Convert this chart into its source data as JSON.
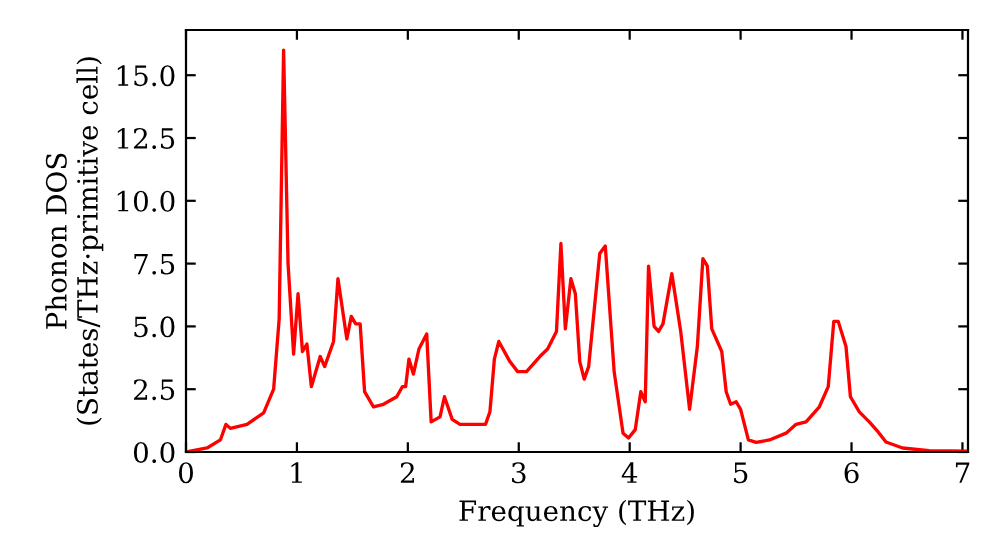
{
  "chart_data": {
    "type": "line",
    "xlabel": "Frequency (THz)",
    "ylabel": "Phonon DOS\n(States/THz·primitive cell)",
    "xlim": [
      0,
      7.05
    ],
    "ylim": [
      0,
      16.8
    ],
    "xticks": [
      0,
      1,
      2,
      3,
      4,
      5,
      6,
      7
    ],
    "yticks": [
      {
        "value": 0,
        "label": "0.0"
      },
      {
        "value": 2.5,
        "label": "2.5"
      },
      {
        "value": 5,
        "label": "5.0"
      },
      {
        "value": 7.5,
        "label": "7.5"
      },
      {
        "value": 10,
        "label": "10.0"
      },
      {
        "value": 12.5,
        "label": "12.5"
      },
      {
        "value": 15,
        "label": "15.0"
      }
    ],
    "grid": false,
    "marker": "none",
    "line_style": "solid",
    "series": [
      {
        "color": "#ff0000",
        "x": [
          0,
          0.19,
          0.31,
          0.36,
          0.4,
          0.55,
          0.7,
          0.79,
          0.84,
          0.88,
          0.92,
          0.97,
          1.01,
          1.05,
          1.09,
          1.13,
          1.21,
          1.25,
          1.33,
          1.37,
          1.45,
          1.49,
          1.53,
          1.57,
          1.61,
          1.69,
          1.78,
          1.9,
          1.95,
          1.98,
          2.01,
          2.05,
          2.1,
          2.17,
          2.21,
          2.29,
          2.33,
          2.4,
          2.47,
          2.7,
          2.74,
          2.78,
          2.82,
          2.92,
          2.99,
          3.07,
          3.19,
          3.26,
          3.34,
          3.38,
          3.42,
          3.47,
          3.51,
          3.55,
          3.59,
          3.63,
          3.73,
          3.78,
          3.86,
          3.94,
          3.99,
          4.05,
          4.1,
          4.14,
          4.17,
          4.22,
          4.26,
          4.3,
          4.38,
          4.46,
          4.54,
          4.61,
          4.66,
          4.7,
          4.74,
          4.83,
          4.87,
          4.91,
          4.96,
          5.0,
          5.07,
          5.14,
          5.26,
          5.41,
          5.5,
          5.59,
          5.71,
          5.79,
          5.84,
          5.88,
          5.95,
          5.99,
          6.07,
          6.16,
          6.24,
          6.31,
          6.46,
          6.7,
          7.03
        ],
        "values": [
          0,
          0.16,
          0.48,
          1.1,
          0.94,
          1.1,
          1.56,
          2.5,
          5.3,
          16.0,
          7.5,
          3.9,
          6.3,
          4.0,
          4.3,
          2.6,
          3.8,
          3.4,
          4.4,
          6.9,
          4.5,
          5.4,
          5.1,
          5.1,
          2.4,
          1.8,
          1.9,
          2.2,
          2.6,
          2.6,
          3.7,
          3.1,
          4.1,
          4.7,
          1.2,
          1.4,
          2.2,
          1.3,
          1.1,
          1.1,
          1.6,
          3.7,
          4.4,
          3.6,
          3.2,
          3.2,
          3.8,
          4.1,
          4.8,
          8.3,
          4.9,
          6.9,
          6.3,
          3.6,
          2.9,
          3.4,
          7.9,
          8.2,
          3.2,
          0.75,
          0.56,
          0.89,
          2.4,
          2.0,
          7.4,
          5.0,
          4.8,
          5.1,
          7.1,
          4.8,
          1.7,
          4.2,
          7.7,
          7.4,
          4.9,
          4.0,
          2.4,
          1.9,
          2.0,
          1.7,
          0.48,
          0.38,
          0.48,
          0.75,
          1.1,
          1.2,
          1.8,
          2.6,
          5.2,
          5.2,
          4.2,
          2.2,
          1.6,
          1.2,
          0.8,
          0.4,
          0.16,
          0.05,
          0.03
        ]
      }
    ]
  }
}
